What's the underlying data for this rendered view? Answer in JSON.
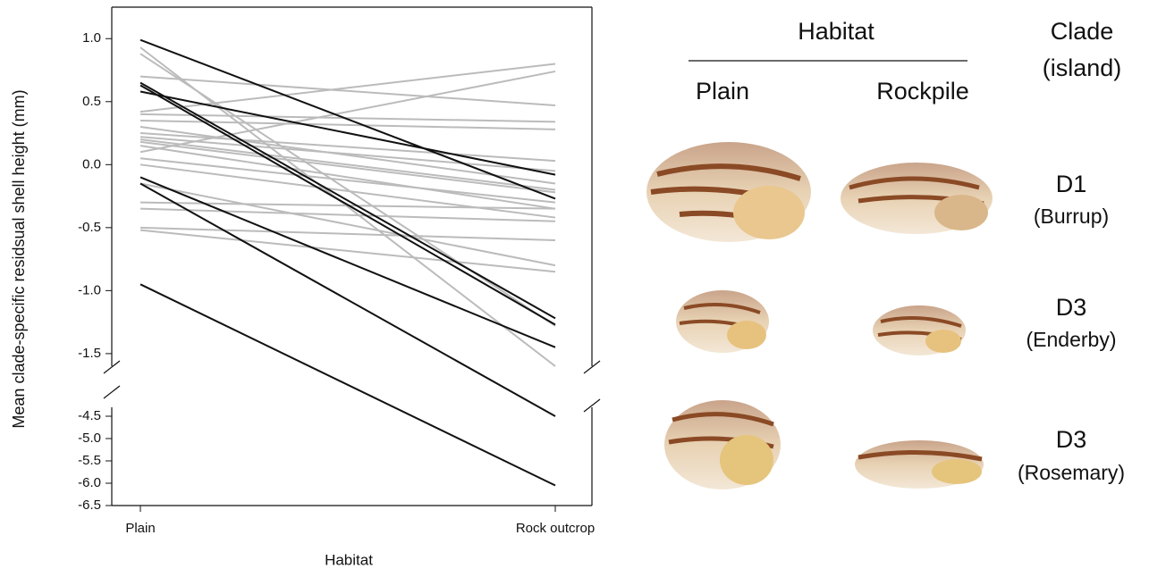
{
  "chart_data": {
    "type": "line",
    "y_label": "Mean clade-specific residsual shell height (mm)",
    "x_label": "Habitat",
    "categories": [
      "Plain",
      "Rock outcrop"
    ],
    "panels": [
      {
        "ylim": [
          -1.6,
          1.25
        ],
        "yticks": [
          {
            "value": 1,
            "label": "1.0"
          },
          0.5,
          {
            "value": 0,
            "label": "0.0"
          },
          -0.5,
          {
            "value": -1,
            "label": "-1.0"
          },
          -1.5
        ]
      },
      {
        "ylim": [
          -6.5,
          -4.3
        ],
        "yticks": [
          -4.5,
          {
            "value": -5,
            "label": "-5.0"
          },
          -5.5,
          {
            "value": -6,
            "label": "-6.0"
          },
          -6.5
        ]
      }
    ],
    "series": [
      {
        "color": "#bbbbbb",
        "values": [
          0.93,
          -1.6
        ]
      },
      {
        "color": "#bbbbbb",
        "values": [
          0.88,
          -1.28
        ]
      },
      {
        "color": "#bbbbbb",
        "values": [
          0.7,
          0.47
        ]
      },
      {
        "color": "#bbbbbb",
        "values": [
          0.42,
          0.8
        ]
      },
      {
        "color": "#bbbbbb",
        "values": [
          0.4,
          0.34
        ]
      },
      {
        "color": "#bbbbbb",
        "values": [
          0.35,
          0.28
        ]
      },
      {
        "color": "#bbbbbb",
        "values": [
          0.3,
          -0.15
        ]
      },
      {
        "color": "#bbbbbb",
        "values": [
          0.25,
          0.03
        ]
      },
      {
        "color": "#bbbbbb",
        "values": [
          0.22,
          -0.05
        ]
      },
      {
        "color": "#bbbbbb",
        "values": [
          0.2,
          -0.2
        ]
      },
      {
        "color": "#bbbbbb",
        "values": [
          0.18,
          -0.22
        ]
      },
      {
        "color": "#bbbbbb",
        "values": [
          0.15,
          -0.35
        ]
      },
      {
        "color": "#bbbbbb",
        "values": [
          0.1,
          0.74
        ]
      },
      {
        "color": "#bbbbbb",
        "values": [
          0.05,
          -0.3
        ]
      },
      {
        "color": "#bbbbbb",
        "values": [
          0.0,
          -0.42
        ]
      },
      {
        "color": "#bbbbbb",
        "values": [
          -0.15,
          -0.8
        ]
      },
      {
        "color": "#bbbbbb",
        "values": [
          -0.3,
          -0.35
        ]
      },
      {
        "color": "#bbbbbb",
        "values": [
          -0.35,
          -0.45
        ]
      },
      {
        "color": "#bbbbbb",
        "values": [
          -0.5,
          -0.6
        ]
      },
      {
        "color": "#bbbbbb",
        "values": [
          -0.52,
          -0.85
        ]
      },
      {
        "color": "#111111",
        "values": [
          0.99,
          -0.27
        ]
      },
      {
        "color": "#111111",
        "values": [
          0.58,
          -0.08
        ]
      },
      {
        "color": "#111111",
        "values": [
          0.65,
          -1.22
        ]
      },
      {
        "color": "#111111",
        "values": [
          0.63,
          -1.27
        ]
      },
      {
        "color": "#111111",
        "values": [
          -0.1,
          -1.45
        ]
      },
      {
        "color": "#111111",
        "values": [
          -0.15,
          -4.5
        ]
      },
      {
        "color": "#111111",
        "values": [
          -0.95,
          -6.05
        ]
      }
    ]
  },
  "panel": {
    "title": "Habitat",
    "columns": [
      "Plain",
      "Rockpile"
    ],
    "clade_header": [
      "Clade",
      "(island)"
    ],
    "rows": [
      {
        "clade": "D1",
        "island": "(Burrup)"
      },
      {
        "clade": "D3",
        "island": "(Enderby)"
      },
      {
        "clade": "D3",
        "island": "(Rosemary)"
      }
    ]
  }
}
